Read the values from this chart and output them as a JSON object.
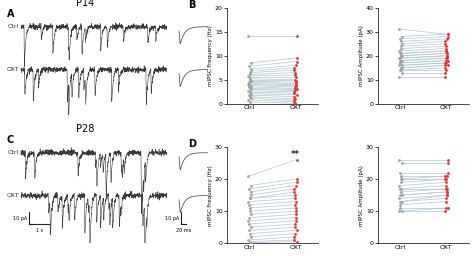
{
  "panel_A_label": "A",
  "panel_B_label": "B",
  "panel_C_label": "C",
  "panel_D_label": "D",
  "title_P14": "P14",
  "title_P28": "P28",
  "trace_color": "#3a3a3a",
  "ctrl_label": "Ctrl",
  "oxt_label": "OXT",
  "line_color": "#aec6cf",
  "ctrl_dot_color": "#a0a0a0",
  "oxt_dot_color": "#e83030",
  "significance_text": "**",
  "B_freq_ctrl": [
    14.2,
    8.5,
    7.8,
    7.2,
    6.8,
    6.5,
    6.1,
    5.8,
    5.5,
    5.2,
    4.9,
    4.7,
    4.5,
    4.2,
    4.0,
    3.8,
    3.5,
    3.2,
    3.0,
    2.7,
    2.4,
    2.1,
    1.8,
    1.5,
    1.2,
    0.8,
    0.4
  ],
  "B_freq_oxt": [
    14.2,
    9.5,
    8.8,
    8.0,
    7.5,
    7.0,
    6.5,
    6.0,
    5.5,
    5.0,
    4.8,
    4.5,
    4.2,
    4.0,
    3.8,
    3.5,
    3.2,
    3.0,
    2.8,
    2.5,
    2.2,
    1.9,
    1.5,
    1.0,
    0.7,
    0.4,
    0.1
  ],
  "B_freq_ylim": [
    0,
    20
  ],
  "B_freq_yticks": [
    0,
    5,
    10,
    15,
    20
  ],
  "B_freq_ylabel": "mIPSC Frequency (Hz)",
  "B_amp_ctrl": [
    31,
    28,
    27,
    26,
    25,
    24,
    23,
    22,
    21,
    21,
    20,
    20,
    19,
    19,
    18,
    18,
    17,
    17,
    16,
    16,
    15,
    15,
    14,
    14,
    13,
    11
  ],
  "B_amp_oxt": [
    29,
    29,
    28,
    27,
    26,
    25,
    24,
    23,
    22,
    22,
    21,
    21,
    20,
    20,
    19,
    19,
    18,
    18,
    17,
    17,
    16,
    16,
    15,
    14,
    13,
    11
  ],
  "B_amp_ylim": [
    0,
    40
  ],
  "B_amp_yticks": [
    0,
    10,
    20,
    30,
    40
  ],
  "B_amp_ylabel": "mIPSC Amplitude (pA)",
  "D_freq_ctrl": [
    21,
    18,
    17,
    16,
    15,
    14,
    14,
    13,
    12,
    11,
    10,
    9,
    8,
    7,
    6,
    5,
    4,
    3,
    2,
    1,
    0.5,
    0.2
  ],
  "D_freq_oxt": [
    26,
    20,
    19,
    18,
    17,
    16,
    15,
    14,
    13,
    12,
    11,
    10,
    9,
    8,
    7,
    6,
    5,
    4,
    3,
    2,
    1,
    0.5
  ],
  "D_freq_ylim": [
    0,
    30
  ],
  "D_freq_yticks": [
    0,
    10,
    20,
    30
  ],
  "D_freq_ylabel": "mIPSC Frequency (Hz)",
  "D_amp_ctrl": [
    26,
    25,
    22,
    21,
    20,
    20,
    19,
    18,
    17,
    17,
    16,
    15,
    15,
    14,
    13,
    13,
    12,
    11,
    10,
    10
  ],
  "D_amp_oxt": [
    26,
    25,
    22,
    21,
    21,
    20,
    20,
    19,
    18,
    17,
    17,
    16,
    16,
    15,
    15,
    14,
    13,
    11,
    11,
    10
  ],
  "D_amp_ylim": [
    0,
    30
  ],
  "D_amp_yticks": [
    0,
    10,
    20,
    30
  ],
  "D_amp_ylabel": "mIPSC Amplitude (pA)",
  "scale_bar_color": "#222222",
  "background": "#ffffff",
  "trace_lw": 0.4,
  "fig_width": 4.74,
  "fig_height": 2.56
}
